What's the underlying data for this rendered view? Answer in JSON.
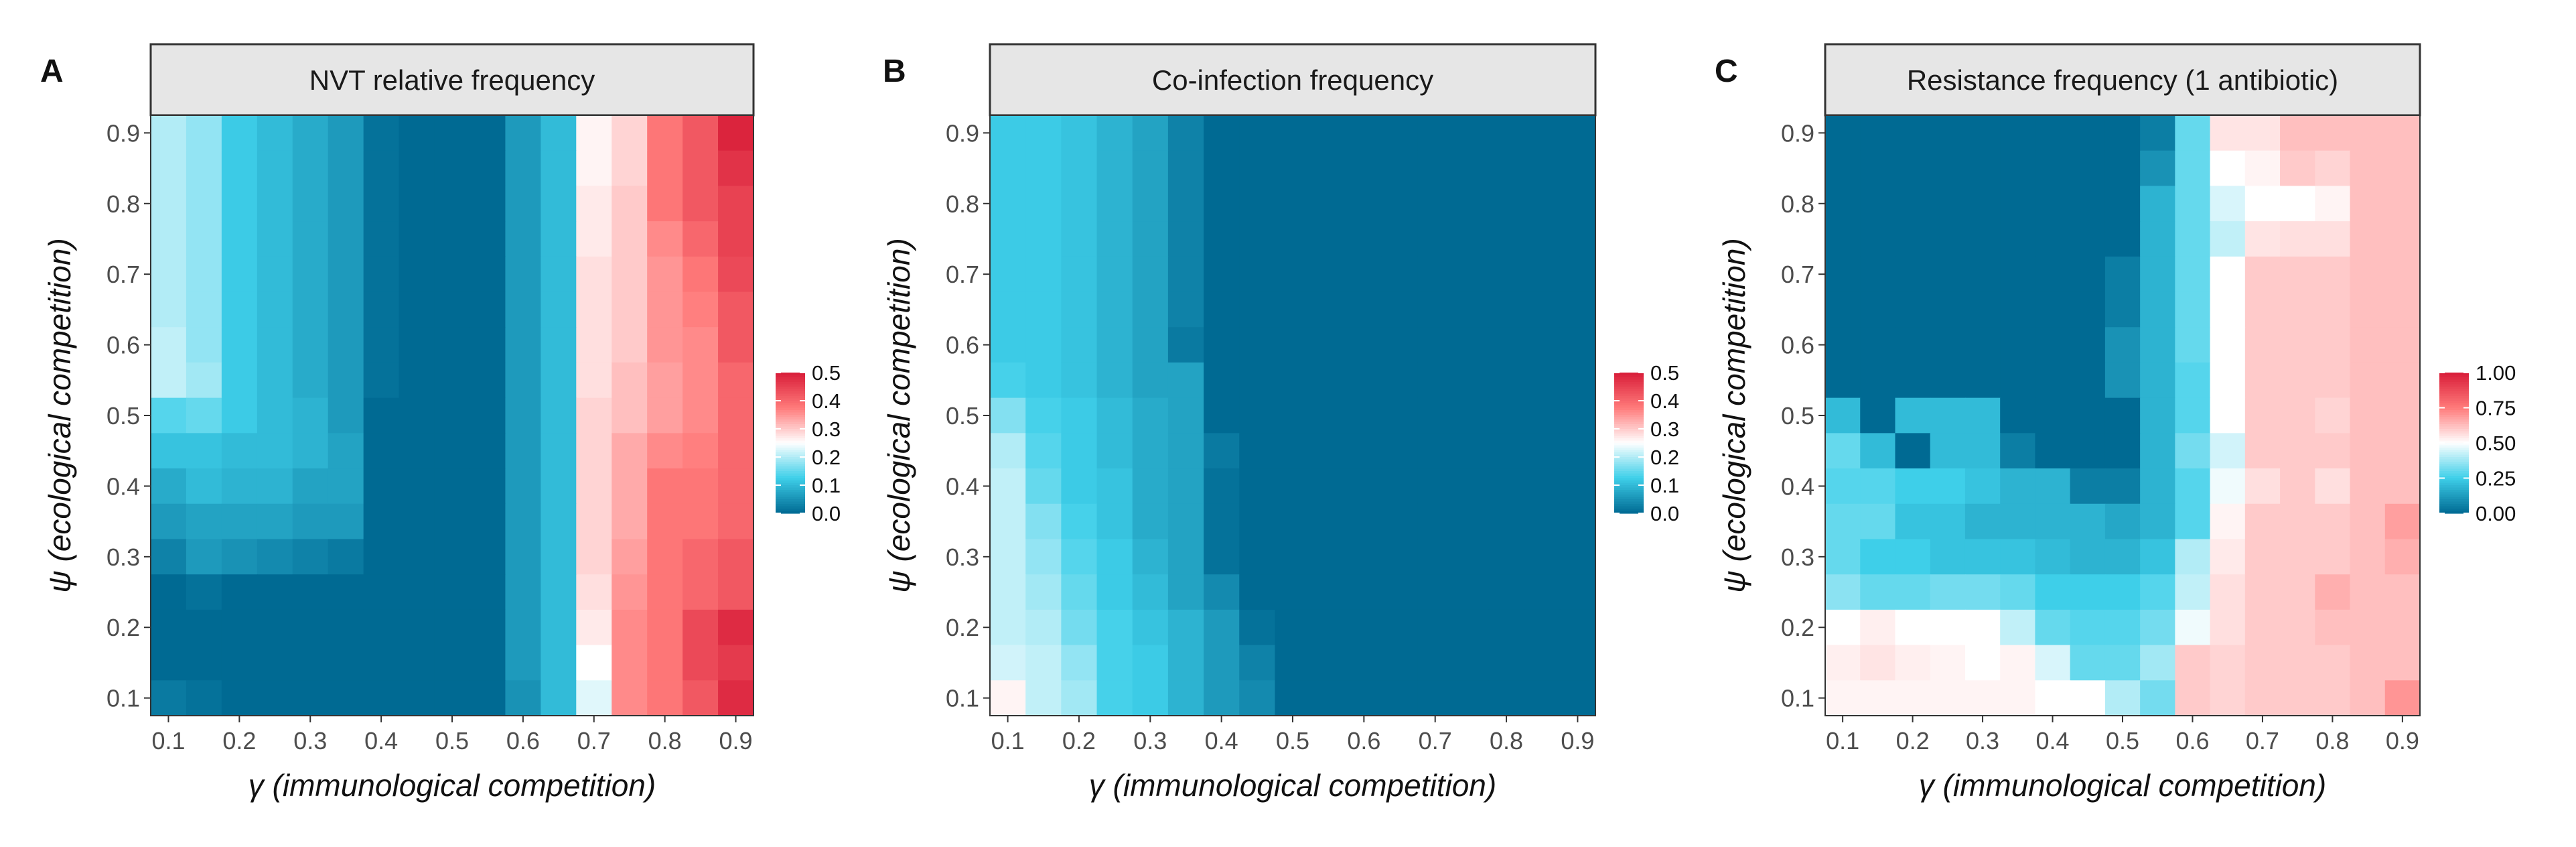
{
  "figure": {
    "shared_xlabel": "γ (immunological competition)",
    "shared_ylabel": "ψ (ecological competition)",
    "tick_labels": [
      "0.1",
      "0.2",
      "0.3",
      "0.4",
      "0.5",
      "0.6",
      "0.7",
      "0.8",
      "0.9"
    ],
    "palette": {
      "low": "#006a93",
      "low_mid": "#3ecfe9",
      "mid": "#ffffff",
      "high_mid": "#ff7a7a",
      "high": "#d81c38",
      "strip_fill": "#e6e6e6",
      "strip_border": "#333333"
    }
  },
  "chart_data": [
    {
      "panel": "A",
      "type": "heatmap",
      "title": "NVT relative frequency",
      "xlabel": "γ (immunological competition)",
      "ylabel": "ψ (ecological competition)",
      "x_ticks": [
        "0.1",
        "0.2",
        "0.3",
        "0.4",
        "0.5",
        "0.6",
        "0.7",
        "0.8",
        "0.9"
      ],
      "y_ticks": [
        "0.9",
        "0.8",
        "0.7",
        "0.6",
        "0.5",
        "0.4",
        "0.3",
        "0.2",
        "0.1"
      ],
      "x_grid_values": [
        0.1,
        0.15,
        0.2,
        0.25,
        0.3,
        0.35,
        0.4,
        0.45,
        0.5,
        0.55,
        0.6,
        0.65,
        0.7,
        0.75,
        0.8,
        0.85,
        0.9
      ],
      "y_grid_values": [
        0.9,
        0.85,
        0.8,
        0.75,
        0.7,
        0.65,
        0.6,
        0.55,
        0.5,
        0.45,
        0.4,
        0.35,
        0.3,
        0.25,
        0.2,
        0.15,
        0.1
      ],
      "colorbar": {
        "min": 0.0,
        "max": 0.5,
        "ticks": [
          "0.5",
          "0.4",
          "0.3",
          "0.2",
          "0.1",
          "0.0"
        ]
      },
      "z": [
        [
          0.2,
          0.18,
          0.12,
          0.1,
          0.08,
          0.06,
          0.01,
          0.0,
          0.0,
          0.0,
          0.06,
          0.1,
          0.26,
          0.29,
          0.38,
          0.42,
          0.49
        ],
        [
          0.2,
          0.18,
          0.12,
          0.1,
          0.08,
          0.06,
          0.01,
          0.0,
          0.0,
          0.0,
          0.06,
          0.1,
          0.26,
          0.29,
          0.38,
          0.42,
          0.47
        ],
        [
          0.2,
          0.18,
          0.12,
          0.1,
          0.08,
          0.06,
          0.01,
          0.0,
          0.0,
          0.0,
          0.06,
          0.1,
          0.27,
          0.3,
          0.38,
          0.42,
          0.45
        ],
        [
          0.2,
          0.18,
          0.12,
          0.1,
          0.08,
          0.06,
          0.01,
          0.0,
          0.0,
          0.0,
          0.06,
          0.1,
          0.27,
          0.3,
          0.36,
          0.4,
          0.45
        ],
        [
          0.2,
          0.18,
          0.12,
          0.1,
          0.08,
          0.06,
          0.01,
          0.0,
          0.0,
          0.0,
          0.06,
          0.1,
          0.28,
          0.3,
          0.35,
          0.38,
          0.44
        ],
        [
          0.2,
          0.18,
          0.12,
          0.1,
          0.08,
          0.06,
          0.01,
          0.0,
          0.0,
          0.0,
          0.06,
          0.1,
          0.28,
          0.3,
          0.35,
          0.37,
          0.42
        ],
        [
          0.21,
          0.18,
          0.12,
          0.1,
          0.08,
          0.06,
          0.01,
          0.0,
          0.0,
          0.0,
          0.06,
          0.1,
          0.28,
          0.3,
          0.35,
          0.36,
          0.42
        ],
        [
          0.21,
          0.19,
          0.12,
          0.1,
          0.08,
          0.06,
          0.01,
          0.0,
          0.0,
          0.0,
          0.06,
          0.1,
          0.28,
          0.31,
          0.34,
          0.36,
          0.4
        ],
        [
          0.14,
          0.15,
          0.12,
          0.1,
          0.09,
          0.06,
          0.0,
          0.0,
          0.0,
          0.0,
          0.06,
          0.1,
          0.29,
          0.31,
          0.34,
          0.36,
          0.4
        ],
        [
          0.11,
          0.11,
          0.1,
          0.1,
          0.09,
          0.07,
          0.0,
          0.0,
          0.0,
          0.0,
          0.06,
          0.1,
          0.29,
          0.33,
          0.36,
          0.37,
          0.4
        ],
        [
          0.08,
          0.1,
          0.09,
          0.09,
          0.07,
          0.07,
          0.0,
          0.0,
          0.0,
          0.0,
          0.06,
          0.1,
          0.29,
          0.33,
          0.38,
          0.38,
          0.4
        ],
        [
          0.06,
          0.07,
          0.07,
          0.07,
          0.06,
          0.06,
          0.0,
          0.0,
          0.0,
          0.0,
          0.06,
          0.1,
          0.29,
          0.33,
          0.38,
          0.38,
          0.4
        ],
        [
          0.03,
          0.06,
          0.05,
          0.04,
          0.03,
          0.02,
          0.0,
          0.0,
          0.0,
          0.0,
          0.06,
          0.1,
          0.29,
          0.34,
          0.38,
          0.4,
          0.42
        ],
        [
          0.0,
          0.01,
          0.0,
          0.0,
          0.0,
          0.0,
          0.0,
          0.0,
          0.0,
          0.0,
          0.06,
          0.1,
          0.28,
          0.35,
          0.38,
          0.4,
          0.42
        ],
        [
          0.0,
          0.0,
          0.0,
          0.0,
          0.0,
          0.0,
          0.0,
          0.0,
          0.0,
          0.0,
          0.06,
          0.1,
          0.27,
          0.36,
          0.38,
          0.44,
          0.48
        ],
        [
          0.0,
          0.0,
          0.0,
          0.0,
          0.0,
          0.0,
          0.0,
          0.0,
          0.0,
          0.0,
          0.06,
          0.1,
          0.25,
          0.36,
          0.38,
          0.44,
          0.46
        ],
        [
          0.02,
          0.01,
          0.0,
          0.0,
          0.0,
          0.0,
          0.0,
          0.0,
          0.0,
          0.0,
          0.05,
          0.1,
          0.23,
          0.36,
          0.38,
          0.42,
          0.48
        ]
      ]
    },
    {
      "panel": "B",
      "type": "heatmap",
      "title": "Co-infection frequency",
      "xlabel": "γ (immunological competition)",
      "ylabel": "ψ (ecological competition)",
      "x_ticks": [
        "0.1",
        "0.2",
        "0.3",
        "0.4",
        "0.5",
        "0.6",
        "0.7",
        "0.8",
        "0.9"
      ],
      "y_ticks": [
        "0.9",
        "0.8",
        "0.7",
        "0.6",
        "0.5",
        "0.4",
        "0.3",
        "0.2",
        "0.1"
      ],
      "x_grid_values": [
        0.1,
        0.15,
        0.2,
        0.25,
        0.3,
        0.35,
        0.4,
        0.45,
        0.5,
        0.55,
        0.6,
        0.65,
        0.7,
        0.75,
        0.8,
        0.85,
        0.9
      ],
      "y_grid_values": [
        0.9,
        0.85,
        0.8,
        0.75,
        0.7,
        0.65,
        0.6,
        0.55,
        0.5,
        0.45,
        0.4,
        0.35,
        0.3,
        0.25,
        0.2,
        0.15,
        0.1
      ],
      "colorbar": {
        "min": 0.0,
        "max": 0.5,
        "ticks": [
          "0.5",
          "0.4",
          "0.3",
          "0.2",
          "0.1",
          "0.0"
        ]
      },
      "z": [
        [
          0.12,
          0.12,
          0.11,
          0.09,
          0.07,
          0.03,
          0,
          0,
          0,
          0,
          0,
          0,
          0,
          0,
          0,
          0,
          0
        ],
        [
          0.12,
          0.12,
          0.11,
          0.09,
          0.07,
          0.03,
          0,
          0,
          0,
          0,
          0,
          0,
          0,
          0,
          0,
          0,
          0
        ],
        [
          0.12,
          0.12,
          0.11,
          0.09,
          0.07,
          0.03,
          0,
          0,
          0,
          0,
          0,
          0,
          0,
          0,
          0,
          0,
          0
        ],
        [
          0.12,
          0.12,
          0.11,
          0.09,
          0.07,
          0.03,
          0,
          0,
          0,
          0,
          0,
          0,
          0,
          0,
          0,
          0,
          0
        ],
        [
          0.12,
          0.12,
          0.11,
          0.09,
          0.07,
          0.03,
          0,
          0,
          0,
          0,
          0,
          0,
          0,
          0,
          0,
          0,
          0
        ],
        [
          0.12,
          0.12,
          0.11,
          0.09,
          0.07,
          0.03,
          0,
          0,
          0,
          0,
          0,
          0,
          0,
          0,
          0,
          0,
          0
        ],
        [
          0.12,
          0.12,
          0.11,
          0.09,
          0.07,
          0.02,
          0,
          0,
          0,
          0,
          0,
          0,
          0,
          0,
          0,
          0,
          0
        ],
        [
          0.13,
          0.12,
          0.11,
          0.09,
          0.07,
          0.07,
          0,
          0,
          0,
          0,
          0,
          0,
          0,
          0,
          0,
          0,
          0
        ],
        [
          0.17,
          0.13,
          0.12,
          0.1,
          0.08,
          0.07,
          0,
          0,
          0,
          0,
          0,
          0,
          0,
          0,
          0,
          0,
          0
        ],
        [
          0.2,
          0.14,
          0.12,
          0.1,
          0.08,
          0.07,
          0.02,
          0,
          0,
          0,
          0,
          0,
          0,
          0,
          0,
          0,
          0
        ],
        [
          0.21,
          0.15,
          0.12,
          0.11,
          0.08,
          0.07,
          0.01,
          0,
          0,
          0,
          0,
          0,
          0,
          0,
          0,
          0,
          0
        ],
        [
          0.21,
          0.17,
          0.13,
          0.11,
          0.08,
          0.07,
          0.01,
          0,
          0,
          0,
          0,
          0,
          0,
          0,
          0,
          0,
          0
        ],
        [
          0.21,
          0.18,
          0.14,
          0.12,
          0.09,
          0.07,
          0.01,
          0,
          0,
          0,
          0,
          0,
          0,
          0,
          0,
          0,
          0
        ],
        [
          0.21,
          0.19,
          0.15,
          0.12,
          0.1,
          0.07,
          0.04,
          0,
          0,
          0,
          0,
          0,
          0,
          0,
          0,
          0,
          0
        ],
        [
          0.21,
          0.2,
          0.16,
          0.13,
          0.11,
          0.09,
          0.06,
          0.01,
          0,
          0,
          0,
          0,
          0,
          0,
          0,
          0,
          0
        ],
        [
          0.22,
          0.21,
          0.18,
          0.13,
          0.12,
          0.09,
          0.06,
          0.03,
          0,
          0,
          0,
          0,
          0,
          0,
          0,
          0,
          0
        ],
        [
          0.26,
          0.21,
          0.19,
          0.13,
          0.12,
          0.09,
          0.06,
          0.04,
          0,
          0,
          0,
          0,
          0,
          0,
          0,
          0,
          0
        ]
      ]
    },
    {
      "panel": "C",
      "type": "heatmap",
      "title": "Resistance frequency (1 antibiotic)",
      "xlabel": "γ (immunological competition)",
      "ylabel": "ψ (ecological competition)",
      "x_ticks": [
        "0.1",
        "0.2",
        "0.3",
        "0.4",
        "0.5",
        "0.6",
        "0.7",
        "0.8",
        "0.9"
      ],
      "y_ticks": [
        "0.9",
        "0.8",
        "0.7",
        "0.6",
        "0.5",
        "0.4",
        "0.3",
        "0.2",
        "0.1"
      ],
      "x_grid_values": [
        0.1,
        0.15,
        0.2,
        0.25,
        0.3,
        0.35,
        0.4,
        0.45,
        0.5,
        0.55,
        0.6,
        0.65,
        0.7,
        0.75,
        0.8,
        0.85,
        0.9
      ],
      "y_grid_values": [
        0.9,
        0.85,
        0.8,
        0.75,
        0.7,
        0.65,
        0.6,
        0.55,
        0.5,
        0.45,
        0.4,
        0.35,
        0.3,
        0.25,
        0.2,
        0.15,
        0.1
      ],
      "colorbar": {
        "min": 0.0,
        "max": 1.0,
        "ticks": [
          "1.00",
          "0.75",
          "0.50",
          "0.25",
          "0.00"
        ]
      },
      "z": [
        [
          0.0,
          0.0,
          0.0,
          0.0,
          0.0,
          0.0,
          0.0,
          0.0,
          0.0,
          0.05,
          0.3,
          0.55,
          0.55,
          0.62,
          0.62,
          0.62,
          0.62
        ],
        [
          0.0,
          0.0,
          0.0,
          0.0,
          0.0,
          0.0,
          0.0,
          0.0,
          0.0,
          0.1,
          0.3,
          0.5,
          0.52,
          0.6,
          0.58,
          0.62,
          0.62
        ],
        [
          0.0,
          0.0,
          0.0,
          0.0,
          0.0,
          0.0,
          0.0,
          0.0,
          0.0,
          0.18,
          0.3,
          0.45,
          0.5,
          0.5,
          0.52,
          0.62,
          0.62
        ],
        [
          0.0,
          0.0,
          0.0,
          0.0,
          0.0,
          0.0,
          0.0,
          0.0,
          0.0,
          0.18,
          0.3,
          0.42,
          0.55,
          0.56,
          0.56,
          0.62,
          0.62
        ],
        [
          0.0,
          0.0,
          0.0,
          0.0,
          0.0,
          0.0,
          0.0,
          0.0,
          0.05,
          0.18,
          0.3,
          0.5,
          0.6,
          0.6,
          0.6,
          0.62,
          0.62
        ],
        [
          0.0,
          0.0,
          0.0,
          0.0,
          0.0,
          0.0,
          0.0,
          0.0,
          0.05,
          0.18,
          0.3,
          0.5,
          0.6,
          0.6,
          0.6,
          0.62,
          0.62
        ],
        [
          0.0,
          0.0,
          0.0,
          0.0,
          0.0,
          0.0,
          0.0,
          0.0,
          0.1,
          0.18,
          0.3,
          0.5,
          0.6,
          0.6,
          0.6,
          0.62,
          0.62
        ],
        [
          0.0,
          0.0,
          0.0,
          0.0,
          0.0,
          0.0,
          0.0,
          0.0,
          0.1,
          0.18,
          0.28,
          0.5,
          0.6,
          0.6,
          0.6,
          0.62,
          0.62
        ],
        [
          0.2,
          0.0,
          0.2,
          0.2,
          0.2,
          0.0,
          0.0,
          0.0,
          0.0,
          0.18,
          0.28,
          0.5,
          0.6,
          0.6,
          0.58,
          0.62,
          0.62
        ],
        [
          0.3,
          0.2,
          0.0,
          0.2,
          0.2,
          0.05,
          0.0,
          0.0,
          0.0,
          0.18,
          0.32,
          0.44,
          0.6,
          0.6,
          0.6,
          0.62,
          0.62
        ],
        [
          0.28,
          0.28,
          0.25,
          0.25,
          0.22,
          0.18,
          0.18,
          0.05,
          0.05,
          0.18,
          0.28,
          0.48,
          0.56,
          0.6,
          0.56,
          0.62,
          0.62
        ],
        [
          0.3,
          0.3,
          0.22,
          0.22,
          0.18,
          0.18,
          0.18,
          0.18,
          0.15,
          0.18,
          0.28,
          0.52,
          0.6,
          0.6,
          0.6,
          0.62,
          0.68
        ],
        [
          0.3,
          0.25,
          0.25,
          0.22,
          0.22,
          0.22,
          0.2,
          0.18,
          0.18,
          0.22,
          0.4,
          0.54,
          0.6,
          0.6,
          0.6,
          0.62,
          0.65
        ],
        [
          0.35,
          0.3,
          0.3,
          0.32,
          0.32,
          0.3,
          0.25,
          0.25,
          0.25,
          0.28,
          0.42,
          0.56,
          0.6,
          0.6,
          0.65,
          0.62,
          0.62
        ],
        [
          0.5,
          0.53,
          0.5,
          0.5,
          0.5,
          0.42,
          0.3,
          0.28,
          0.28,
          0.32,
          0.48,
          0.56,
          0.6,
          0.6,
          0.62,
          0.62,
          0.62
        ],
        [
          0.53,
          0.55,
          0.53,
          0.52,
          0.5,
          0.52,
          0.45,
          0.3,
          0.3,
          0.38,
          0.6,
          0.58,
          0.6,
          0.6,
          0.6,
          0.62,
          0.62
        ],
        [
          0.52,
          0.52,
          0.52,
          0.52,
          0.52,
          0.52,
          0.5,
          0.5,
          0.4,
          0.32,
          0.6,
          0.58,
          0.6,
          0.6,
          0.6,
          0.62,
          0.7
        ]
      ]
    }
  ],
  "panel_letters": [
    "A",
    "B",
    "C"
  ]
}
